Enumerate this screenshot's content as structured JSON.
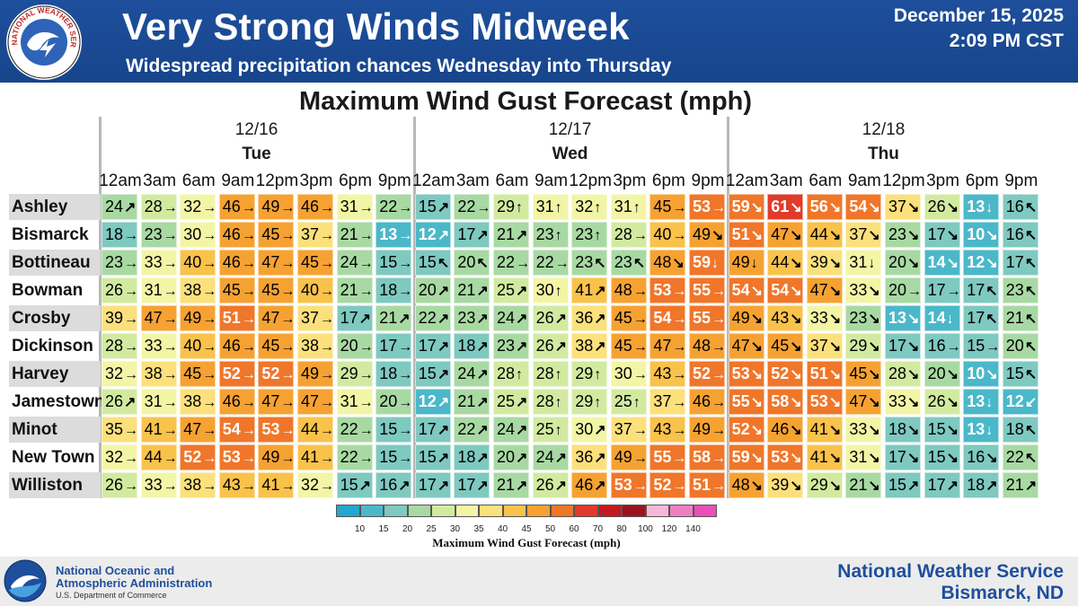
{
  "header": {
    "title": "Very Strong Winds Midweek",
    "subtitle": "Widespread precipitation chances Wednesday into Thursday",
    "date": "December 15, 2025",
    "time": "2:09 PM CST",
    "logo_text": "NATIONAL WEATHER SERVICE",
    "background_color": "#1e4f9c"
  },
  "chart": {
    "title": "Maximum Wind Gust Forecast (mph)",
    "days": [
      {
        "date": "12/16",
        "name": "Tue"
      },
      {
        "date": "12/17",
        "name": "Wed"
      },
      {
        "date": "12/18",
        "name": "Thu"
      }
    ],
    "hours": [
      "12am",
      "3am",
      "6am",
      "9am",
      "12pm",
      "3pm",
      "6pm",
      "9pm"
    ],
    "legend_title": "Maximum Wind Gust Forecast (mph)",
    "legend_labels": [
      "10",
      "15",
      "20",
      "25",
      "30",
      "35",
      "40",
      "45",
      "50",
      "60",
      "70",
      "80",
      "100",
      "120",
      "140"
    ],
    "legend_colors": [
      "#23a6d0",
      "#4bb8c9",
      "#7ec9c0",
      "#a8d9a3",
      "#d2eaa0",
      "#f3f5a6",
      "#fbe07c",
      "#f9c24b",
      "#f6a232",
      "#f0762a",
      "#e13b2a",
      "#c41a1f",
      "#9a1420",
      "#f6b8d8",
      "#ef7fc3",
      "#e94fb8"
    ]
  },
  "chart_data": {
    "type": "table",
    "title": "Maximum Wind Gust Forecast (mph)",
    "columns": [
      "12/16 Tue 12am",
      "12/16 Tue 3am",
      "12/16 Tue 6am",
      "12/16 Tue 9am",
      "12/16 Tue 12pm",
      "12/16 Tue 3pm",
      "12/16 Tue 6pm",
      "12/16 Tue 9pm",
      "12/17 Wed 12am",
      "12/17 Wed 3am",
      "12/17 Wed 6am",
      "12/17 Wed 9am",
      "12/17 Wed 12pm",
      "12/17 Wed 3pm",
      "12/17 Wed 6pm",
      "12/17 Wed 9pm",
      "12/18 Thu 12am",
      "12/18 Thu 3am",
      "12/18 Thu 6am",
      "12/18 Thu 9am",
      "12/18 Thu 12pm",
      "12/18 Thu 3pm",
      "12/18 Thu 6pm",
      "12/18 Thu 9pm"
    ],
    "rows": [
      {
        "station": "Ashley",
        "values": [
          24,
          28,
          32,
          46,
          49,
          46,
          31,
          22,
          15,
          22,
          29,
          31,
          32,
          31,
          45,
          53,
          59,
          61,
          56,
          54,
          37,
          26,
          13,
          16
        ],
        "directions": [
          "NE",
          "E",
          "E",
          "E",
          "E",
          "E",
          "E",
          "E",
          "NE",
          "E",
          "N",
          "N",
          "N",
          "N",
          "E",
          "E",
          "SE",
          "SE",
          "SE",
          "SE",
          "SE",
          "SE",
          "S",
          "NW"
        ]
      },
      {
        "station": "Bismarck",
        "values": [
          18,
          23,
          30,
          46,
          45,
          37,
          21,
          13,
          12,
          17,
          21,
          23,
          23,
          28,
          40,
          49,
          51,
          47,
          44,
          37,
          23,
          17,
          10,
          16
        ],
        "directions": [
          "E",
          "E",
          "E",
          "E",
          "E",
          "E",
          "E",
          "E",
          "NE",
          "NE",
          "NE",
          "N",
          "N",
          "E",
          "E",
          "SE",
          "SE",
          "SE",
          "SE",
          "SE",
          "SE",
          "SE",
          "SE",
          "NW"
        ]
      },
      {
        "station": "Bottineau",
        "values": [
          23,
          33,
          40,
          46,
          47,
          45,
          24,
          15,
          15,
          20,
          22,
          22,
          23,
          23,
          48,
          59,
          49,
          44,
          39,
          31,
          20,
          14,
          12,
          17
        ],
        "directions": [
          "E",
          "E",
          "E",
          "E",
          "E",
          "E",
          "E",
          "E",
          "NW",
          "NW",
          "E",
          "E",
          "NW",
          "NW",
          "SE",
          "S",
          "S",
          "SE",
          "SE",
          "S",
          "SE",
          "SE",
          "SE",
          "NW"
        ]
      },
      {
        "station": "Bowman",
        "values": [
          26,
          31,
          38,
          45,
          45,
          40,
          21,
          18,
          20,
          21,
          25,
          30,
          41,
          48,
          53,
          55,
          54,
          54,
          47,
          33,
          20,
          17,
          17,
          23
        ],
        "directions": [
          "E",
          "E",
          "E",
          "E",
          "E",
          "E",
          "E",
          "E",
          "NE",
          "NE",
          "NE",
          "N",
          "NE",
          "E",
          "E",
          "E",
          "SE",
          "SE",
          "SE",
          "SE",
          "E",
          "E",
          "NW",
          "NW"
        ]
      },
      {
        "station": "Crosby",
        "values": [
          39,
          47,
          49,
          51,
          47,
          37,
          17,
          21,
          22,
          23,
          24,
          26,
          36,
          45,
          54,
          55,
          49,
          43,
          33,
          23,
          13,
          14,
          17,
          21
        ],
        "directions": [
          "E",
          "E",
          "E",
          "E",
          "E",
          "E",
          "NE",
          "NE",
          "NE",
          "NE",
          "NE",
          "NE",
          "NE",
          "E",
          "E",
          "E",
          "SE",
          "SE",
          "SE",
          "SE",
          "SE",
          "S",
          "NW",
          "NW"
        ]
      },
      {
        "station": "Dickinson",
        "values": [
          28,
          33,
          40,
          46,
          45,
          38,
          20,
          17,
          17,
          18,
          23,
          26,
          38,
          45,
          47,
          48,
          47,
          45,
          37,
          29,
          17,
          16,
          15,
          20
        ],
        "directions": [
          "E",
          "E",
          "E",
          "E",
          "E",
          "E",
          "E",
          "E",
          "NE",
          "NE",
          "NE",
          "NE",
          "NE",
          "E",
          "E",
          "E",
          "SE",
          "SE",
          "SE",
          "SE",
          "SE",
          "E",
          "E",
          "NW"
        ]
      },
      {
        "station": "Harvey",
        "values": [
          32,
          38,
          45,
          52,
          52,
          49,
          29,
          18,
          15,
          24,
          28,
          28,
          29,
          30,
          43,
          52,
          53,
          52,
          51,
          45,
          28,
          20,
          10,
          15
        ],
        "directions": [
          "E",
          "E",
          "E",
          "E",
          "E",
          "E",
          "E",
          "E",
          "NE",
          "NE",
          "N",
          "N",
          "N",
          "E",
          "E",
          "E",
          "SE",
          "SE",
          "SE",
          "SE",
          "SE",
          "SE",
          "SE",
          "NW"
        ]
      },
      {
        "station": "Jamestown",
        "values": [
          26,
          31,
          38,
          46,
          47,
          47,
          31,
          20,
          12,
          21,
          25,
          28,
          29,
          25,
          37,
          46,
          55,
          58,
          53,
          47,
          33,
          26,
          13,
          12
        ],
        "directions": [
          "NE",
          "E",
          "E",
          "E",
          "E",
          "E",
          "E",
          "E",
          "NE",
          "NE",
          "NE",
          "N",
          "N",
          "N",
          "E",
          "E",
          "SE",
          "SE",
          "SE",
          "SE",
          "SE",
          "SE",
          "S",
          "SW"
        ]
      },
      {
        "station": "Minot",
        "values": [
          35,
          41,
          47,
          54,
          53,
          44,
          22,
          15,
          17,
          22,
          24,
          25,
          30,
          37,
          43,
          49,
          52,
          46,
          41,
          33,
          18,
          15,
          13,
          18
        ],
        "directions": [
          "E",
          "E",
          "E",
          "E",
          "E",
          "E",
          "E",
          "E",
          "NE",
          "NE",
          "NE",
          "N",
          "NE",
          "E",
          "E",
          "E",
          "SE",
          "SE",
          "SE",
          "SE",
          "SE",
          "SE",
          "S",
          "NW"
        ]
      },
      {
        "station": "New Town",
        "values": [
          32,
          44,
          52,
          53,
          49,
          41,
          22,
          15,
          15,
          18,
          20,
          24,
          36,
          49,
          55,
          58,
          59,
          53,
          41,
          31,
          17,
          15,
          16,
          22
        ],
        "directions": [
          "E",
          "E",
          "E",
          "E",
          "E",
          "E",
          "E",
          "E",
          "NE",
          "NE",
          "NE",
          "NE",
          "NE",
          "E",
          "E",
          "E",
          "SE",
          "SE",
          "SE",
          "SE",
          "SE",
          "SE",
          "SE",
          "NW"
        ]
      },
      {
        "station": "Williston",
        "values": [
          26,
          33,
          38,
          43,
          41,
          32,
          15,
          16,
          17,
          17,
          21,
          26,
          46,
          53,
          52,
          51,
          48,
          39,
          29,
          21,
          15,
          17,
          18,
          21
        ],
        "directions": [
          "E",
          "E",
          "E",
          "E",
          "E",
          "E",
          "NE",
          "NE",
          "NE",
          "NE",
          "NE",
          "NE",
          "NE",
          "E",
          "E",
          "E",
          "SE",
          "SE",
          "SE",
          "SE",
          "NE",
          "NE",
          "NE",
          "NE"
        ]
      }
    ],
    "units": "mph"
  },
  "footer": {
    "noaa_line1": "National Oceanic and",
    "noaa_line2": "Atmospheric Administration",
    "noaa_line3": "U.S. Department of Commerce",
    "nws_name": "National Weather Service",
    "nws_office": "Bismarck, ND"
  }
}
